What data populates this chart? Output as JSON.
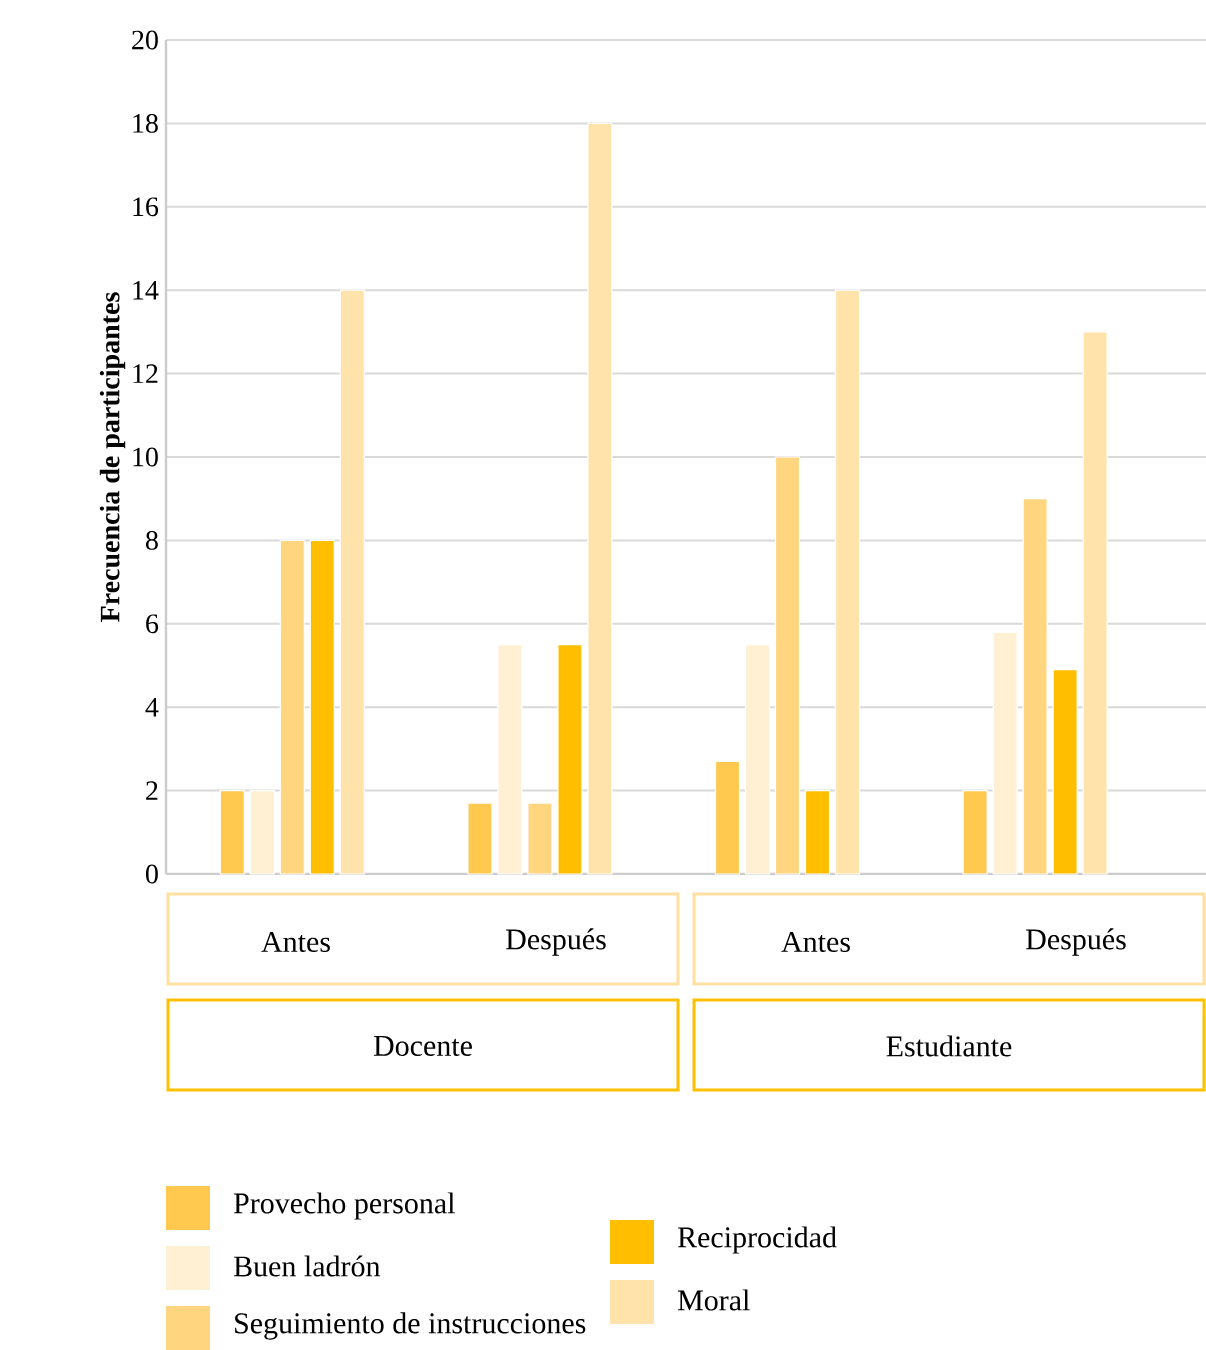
{
  "chart_data": {
    "type": "bar",
    "ylabel": "Frecuencia de participantes",
    "categories": [
      "Antes",
      "Después",
      "Antes",
      "Después"
    ],
    "annotations": [
      "Docente",
      "Estudiante"
    ],
    "series": [
      {
        "name": "Provecho personal",
        "color": "#ffc94f",
        "values": [
          2,
          1.7,
          2.7,
          2
        ]
      },
      {
        "name": "Buen ladrón",
        "color": "#fff0d4",
        "values": [
          2,
          5.5,
          5.5,
          5.8
        ]
      },
      {
        "name": "Seguimiento de instrucciones",
        "color": "#ffd57f",
        "values": [
          8,
          1.7,
          10,
          9
        ]
      },
      {
        "name": "Reciprocidad",
        "color": "#ffbf00",
        "values": [
          8,
          5.5,
          2,
          4.9
        ]
      },
      {
        "name": "Moral",
        "color": "#ffe3ab",
        "values": [
          14,
          18,
          14,
          13
        ]
      }
    ],
    "ylim": [
      0,
      20
    ],
    "yticks": [
      0,
      2,
      4,
      6,
      8,
      10,
      12,
      14,
      16,
      18,
      20
    ],
    "grid": "y",
    "legend": "bottom"
  }
}
